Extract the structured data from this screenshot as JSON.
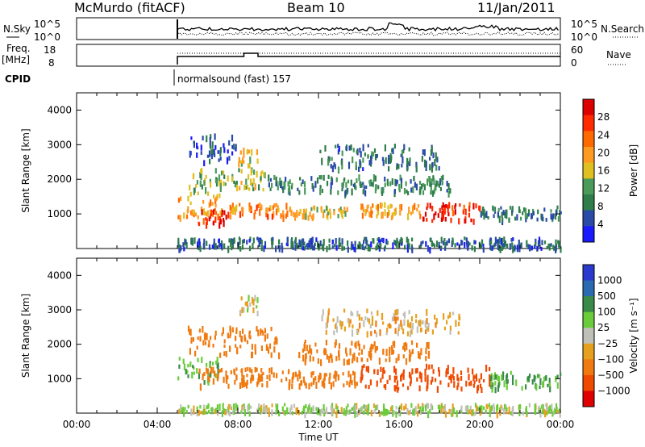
{
  "header": {
    "station": "McMurdo (fitACF)",
    "beam": "Beam 10",
    "date": "11/Jan/2011"
  },
  "panels": {
    "noise": {
      "left_label": "N.Sky",
      "right_label": "N.Search",
      "left_ticks": [
        "10^5",
        "10^0"
      ],
      "right_ticks": [
        "10^5",
        "10^0"
      ]
    },
    "freq": {
      "left_label_1": "Freq.",
      "left_label_2": "[MHz]",
      "right_label": "Nave",
      "left_ticks": [
        "18",
        "8"
      ],
      "right_ticks": [
        "60",
        "0"
      ]
    },
    "cpid": {
      "label": "CPID",
      "value": "normalsound (fast) 157"
    }
  },
  "colors": {
    "power_scale": [
      "#1a1aff",
      "#2a4aa8",
      "#2e7d4a",
      "#4a9a5a",
      "#e0c020",
      "#ff9a20",
      "#ff6a00",
      "#ff2a00",
      "#dd0000"
    ],
    "velocity_scale": [
      "#2a3acc",
      "#2a6ab0",
      "#3a8a4a",
      "#6acc3a",
      "#c0c0b8",
      "#e6a020",
      "#f07a10",
      "#f04a00",
      "#e00000"
    ]
  },
  "chart_data": [
    {
      "type": "heatmap",
      "title": "",
      "ylabel": "Slant Range [km]",
      "ylim": [
        0,
        4500
      ],
      "yticks": [
        "1000",
        "2000",
        "3000",
        "4000"
      ],
      "colorbar_label": "Power [dB]",
      "colorbar_ticks": [
        "4",
        "8",
        "12",
        "16",
        "20",
        "24",
        "28"
      ],
      "colorbar_range": [
        0,
        30
      ],
      "regions": [
        {
          "t": [
            5.0,
            24.0
          ],
          "r": [
            0,
            300
          ],
          "value": 6
        },
        {
          "t": [
            5.0,
            7.2
          ],
          "r": [
            900,
            1600
          ],
          "value": 18
        },
        {
          "t": [
            6.0,
            7.5
          ],
          "r": [
            700,
            1100
          ],
          "value": 26
        },
        {
          "t": [
            7.5,
            10.5
          ],
          "r": [
            900,
            1300
          ],
          "value": 20
        },
        {
          "t": [
            10.5,
            13.5
          ],
          "r": [
            900,
            1200
          ],
          "value": 16
        },
        {
          "t": [
            14.0,
            17.0
          ],
          "r": [
            900,
            1300
          ],
          "value": 18
        },
        {
          "t": [
            17.0,
            20.0
          ],
          "r": [
            800,
            1300
          ],
          "value": 27
        },
        {
          "t": [
            20.0,
            24.0
          ],
          "r": [
            800,
            1200
          ],
          "value": 8
        },
        {
          "t": [
            5.5,
            9.5
          ],
          "r": [
            1700,
            2300
          ],
          "value": 13
        },
        {
          "t": [
            9.5,
            18.5
          ],
          "r": [
            1600,
            2100
          ],
          "value": 9
        },
        {
          "t": [
            12.0,
            18.0
          ],
          "r": [
            2300,
            3000
          ],
          "value": 7
        },
        {
          "t": [
            8.0,
            9.0
          ],
          "r": [
            2400,
            2900
          ],
          "value": 16
        },
        {
          "t": [
            5.5,
            8.0
          ],
          "r": [
            2500,
            3300
          ],
          "value": 5
        }
      ]
    },
    {
      "type": "heatmap",
      "title": "",
      "xlabel": "Time UT",
      "ylabel": "Slant Range [km]",
      "ylim": [
        0,
        4500
      ],
      "xlim": [
        0,
        24
      ],
      "xticks": [
        "00:00",
        "04:00",
        "08:00",
        "12:00",
        "16:00",
        "20:00",
        "00:00"
      ],
      "yticks": [
        "1000",
        "2000",
        "3000",
        "4000"
      ],
      "colorbar_label": "Velocity [m s⁻¹]",
      "colorbar_ticks": [
        "1000",
        "500",
        "100",
        "25",
        "−25",
        "−100",
        "−500",
        "−1000"
      ],
      "regions": [
        {
          "t": [
            5.0,
            24.0
          ],
          "r": [
            0,
            250
          ],
          "value": 25
        },
        {
          "t": [
            5.0,
            7.0
          ],
          "r": [
            900,
            1600
          ],
          "value": 100
        },
        {
          "t": [
            6.0,
            10.5
          ],
          "r": [
            800,
            1300
          ],
          "value": -300
        },
        {
          "t": [
            10.5,
            14.0
          ],
          "r": [
            800,
            1200
          ],
          "value": -200
        },
        {
          "t": [
            14.0,
            20.5
          ],
          "r": [
            700,
            1400
          ],
          "value": -600
        },
        {
          "t": [
            20.5,
            24.0
          ],
          "r": [
            700,
            1200
          ],
          "value": 100
        },
        {
          "t": [
            5.5,
            10.0
          ],
          "r": [
            1700,
            2500
          ],
          "value": -200
        },
        {
          "t": [
            11.0,
            17.5
          ],
          "r": [
            1500,
            2100
          ],
          "value": -300
        },
        {
          "t": [
            12.0,
            19.0
          ],
          "r": [
            2300,
            3000
          ],
          "value": -50
        },
        {
          "t": [
            8.0,
            9.0
          ],
          "r": [
            2900,
            3400
          ],
          "value": 0
        }
      ]
    }
  ]
}
